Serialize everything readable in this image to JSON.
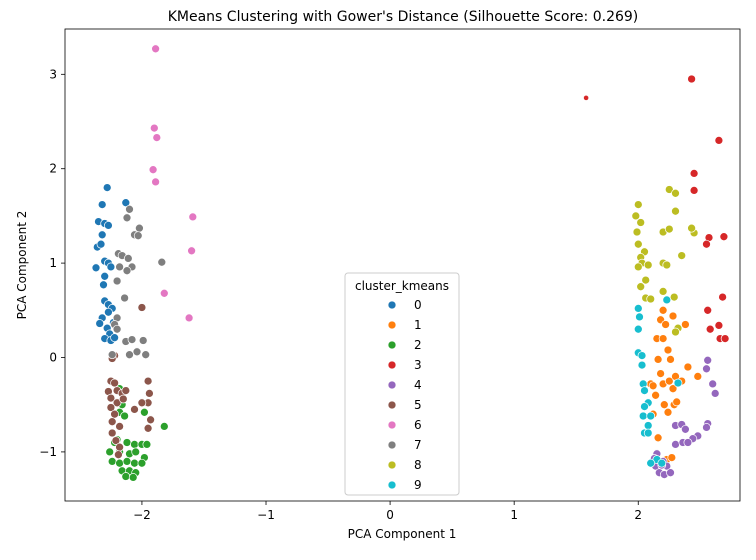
{
  "chart_data": {
    "type": "scatter",
    "title": "KMeans Clustering with Gower's Distance (Silhouette Score: 0.269)",
    "xlabel": "PCA Component 1",
    "ylabel": "PCA Component 2",
    "xlim": [
      -2.62,
      2.82
    ],
    "ylim": [
      -1.52,
      3.48
    ],
    "xticks": [
      -2,
      -1,
      0,
      1,
      2
    ],
    "yticks": [
      -1,
      0,
      1,
      2,
      3
    ],
    "legend": {
      "title": "cluster_kmeans",
      "placement": "lower-center"
    },
    "series": [
      {
        "name": "0",
        "color": "#1f77b4",
        "points": [
          [
            -2.28,
            1.8
          ],
          [
            -2.32,
            1.62
          ],
          [
            -2.35,
            1.44
          ],
          [
            -2.3,
            1.42
          ],
          [
            -2.27,
            1.4
          ],
          [
            -2.32,
            1.3
          ],
          [
            -2.36,
            1.17
          ],
          [
            -2.33,
            1.2
          ],
          [
            -2.3,
            1.02
          ],
          [
            -2.27,
            1.0
          ],
          [
            -2.37,
            0.95
          ],
          [
            -2.25,
            0.96
          ],
          [
            -2.3,
            0.86
          ],
          [
            -2.31,
            0.77
          ],
          [
            -2.3,
            0.6
          ],
          [
            -2.27,
            0.56
          ],
          [
            -2.24,
            0.52
          ],
          [
            -2.27,
            0.48
          ],
          [
            -2.32,
            0.42
          ],
          [
            -2.34,
            0.36
          ],
          [
            -2.28,
            0.31
          ],
          [
            -2.26,
            0.25
          ],
          [
            -2.3,
            0.2
          ],
          [
            -2.25,
            0.18
          ],
          [
            -2.23,
            0.37
          ],
          [
            -2.22,
            0.21
          ],
          [
            -2.13,
            1.64
          ]
        ]
      },
      {
        "name": "1",
        "color": "#ff7f0e",
        "points": [
          [
            2.1,
            -0.28
          ],
          [
            2.12,
            -0.3
          ],
          [
            2.14,
            -0.4
          ],
          [
            2.12,
            -0.6
          ],
          [
            2.16,
            -0.85
          ],
          [
            2.2,
            0.5
          ],
          [
            2.18,
            0.4
          ],
          [
            2.22,
            0.35
          ],
          [
            2.28,
            0.44
          ],
          [
            2.15,
            0.2
          ],
          [
            2.2,
            0.2
          ],
          [
            2.24,
            0.08
          ],
          [
            2.26,
            -0.02
          ],
          [
            2.16,
            -0.02
          ],
          [
            2.18,
            -0.17
          ],
          [
            2.2,
            -0.28
          ],
          [
            2.25,
            -0.25
          ],
          [
            2.28,
            -0.33
          ],
          [
            2.21,
            -0.5
          ],
          [
            2.29,
            -0.5
          ],
          [
            2.24,
            -0.58
          ],
          [
            2.31,
            -0.47
          ],
          [
            2.35,
            -0.25
          ],
          [
            2.38,
            0.35
          ],
          [
            2.48,
            -0.2
          ],
          [
            2.4,
            -0.1
          ],
          [
            2.23,
            -1.08
          ],
          [
            2.27,
            -1.06
          ],
          [
            2.3,
            -0.2
          ]
        ]
      },
      {
        "name": "2",
        "color": "#2ca02c",
        "points": [
          [
            -2.18,
            -0.33
          ],
          [
            -2.16,
            -0.5
          ],
          [
            -2.18,
            -0.58
          ],
          [
            -2.14,
            -0.62
          ],
          [
            -1.98,
            -0.58
          ],
          [
            -1.82,
            -0.73
          ],
          [
            -2.2,
            -0.87
          ],
          [
            -2.12,
            -0.9
          ],
          [
            -2.06,
            -0.92
          ],
          [
            -2.0,
            -0.92
          ],
          [
            -1.96,
            -0.92
          ],
          [
            -2.26,
            -1.0
          ],
          [
            -2.18,
            -1.0
          ],
          [
            -2.1,
            -1.02
          ],
          [
            -2.05,
            -1.0
          ],
          [
            -1.98,
            -1.06
          ],
          [
            -2.24,
            -1.1
          ],
          [
            -2.18,
            -1.12
          ],
          [
            -2.12,
            -1.1
          ],
          [
            -2.06,
            -1.12
          ],
          [
            -2.0,
            -1.12
          ],
          [
            -2.16,
            -1.2
          ],
          [
            -2.1,
            -1.2
          ],
          [
            -2.05,
            -1.22
          ],
          [
            -2.13,
            -1.26
          ],
          [
            -2.07,
            -1.27
          ],
          [
            -2.22,
            -0.9
          ]
        ]
      },
      {
        "name": "3",
        "color": "#d62728",
        "points": [
          [
            1.58,
            2.75
          ],
          [
            2.43,
            2.95
          ],
          [
            2.65,
            2.3
          ],
          [
            2.45,
            1.95
          ],
          [
            2.45,
            1.77
          ],
          [
            2.57,
            1.27
          ],
          [
            2.55,
            1.2
          ],
          [
            2.69,
            1.28
          ],
          [
            2.68,
            0.64
          ],
          [
            2.56,
            0.5
          ],
          [
            2.58,
            0.3
          ],
          [
            2.65,
            0.34
          ],
          [
            2.66,
            0.2
          ],
          [
            2.7,
            0.2
          ]
        ]
      },
      {
        "name": "4",
        "color": "#9467bd",
        "points": [
          [
            2.56,
            -0.03
          ],
          [
            2.55,
            -0.12
          ],
          [
            2.6,
            -0.28
          ],
          [
            2.62,
            -0.38
          ],
          [
            2.56,
            -0.7
          ],
          [
            2.55,
            -0.74
          ],
          [
            2.48,
            -0.83
          ],
          [
            2.44,
            -0.86
          ],
          [
            2.3,
            -0.72
          ],
          [
            2.35,
            -0.71
          ],
          [
            2.38,
            -0.76
          ],
          [
            2.3,
            -0.92
          ],
          [
            2.36,
            -0.9
          ],
          [
            2.4,
            -0.9
          ],
          [
            2.15,
            -1.02
          ],
          [
            2.2,
            -1.1
          ],
          [
            2.23,
            -1.15
          ],
          [
            2.14,
            -1.15
          ],
          [
            2.17,
            -1.22
          ],
          [
            2.21,
            -1.24
          ],
          [
            2.26,
            -1.22
          ],
          [
            2.19,
            -1.14
          ],
          [
            2.13,
            -1.07
          ]
        ]
      },
      {
        "name": "5",
        "color": "#8c564b",
        "points": [
          [
            -2.0,
            0.53
          ],
          [
            -2.22,
            0.02
          ],
          [
            -2.24,
            -0.01
          ],
          [
            -2.25,
            -0.25
          ],
          [
            -2.22,
            -0.27
          ],
          [
            -2.27,
            -0.36
          ],
          [
            -2.2,
            -0.35
          ],
          [
            -2.16,
            -0.38
          ],
          [
            -2.13,
            -0.35
          ],
          [
            -2.25,
            -0.43
          ],
          [
            -2.2,
            -0.48
          ],
          [
            -2.25,
            -0.53
          ],
          [
            -2.22,
            -0.6
          ],
          [
            -2.24,
            -0.68
          ],
          [
            -2.18,
            -0.73
          ],
          [
            -2.24,
            -0.8
          ],
          [
            -2.21,
            -0.88
          ],
          [
            -2.18,
            -0.95
          ],
          [
            -2.19,
            -1.03
          ],
          [
            -1.95,
            -0.25
          ],
          [
            -1.94,
            -0.38
          ],
          [
            -1.95,
            -0.48
          ],
          [
            -1.93,
            -0.66
          ],
          [
            -1.95,
            -0.75
          ],
          [
            -2.0,
            -0.48
          ],
          [
            -2.06,
            -0.55
          ],
          [
            -2.15,
            -0.44
          ]
        ]
      },
      {
        "name": "6",
        "color": "#e377c2",
        "points": [
          [
            -1.89,
            3.27
          ],
          [
            -1.9,
            2.43
          ],
          [
            -1.88,
            2.33
          ],
          [
            -1.91,
            1.99
          ],
          [
            -1.89,
            1.86
          ],
          [
            -1.59,
            1.49
          ],
          [
            -1.6,
            1.13
          ],
          [
            -1.82,
            0.68
          ],
          [
            -1.62,
            0.42
          ]
        ]
      },
      {
        "name": "7",
        "color": "#7f7f7f",
        "points": [
          [
            -2.1,
            1.57
          ],
          [
            -2.12,
            1.48
          ],
          [
            -2.02,
            1.37
          ],
          [
            -2.06,
            1.3
          ],
          [
            -2.03,
            1.29
          ],
          [
            -2.19,
            1.1
          ],
          [
            -2.16,
            1.08
          ],
          [
            -2.11,
            1.05
          ],
          [
            -2.18,
            0.96
          ],
          [
            -2.08,
            0.96
          ],
          [
            -2.12,
            0.92
          ],
          [
            -2.2,
            0.81
          ],
          [
            -2.14,
            0.63
          ],
          [
            -2.2,
            0.42
          ],
          [
            -2.22,
            0.35
          ],
          [
            -2.2,
            0.3
          ],
          [
            -2.13,
            0.17
          ],
          [
            -2.08,
            0.19
          ],
          [
            -2.04,
            0.06
          ],
          [
            -2.1,
            0.03
          ],
          [
            -2.24,
            0.03
          ],
          [
            -1.84,
            1.01
          ],
          [
            -1.99,
            0.18
          ],
          [
            -1.97,
            0.03
          ]
        ]
      },
      {
        "name": "8",
        "color": "#bcbd22",
        "points": [
          [
            2.0,
            1.62
          ],
          [
            1.98,
            1.5
          ],
          [
            2.02,
            1.43
          ],
          [
            1.99,
            1.33
          ],
          [
            2.0,
            1.2
          ],
          [
            2.05,
            1.12
          ],
          [
            2.02,
            1.06
          ],
          [
            2.03,
            1.0
          ],
          [
            2.0,
            0.96
          ],
          [
            2.08,
            0.98
          ],
          [
            2.06,
            0.82
          ],
          [
            2.02,
            0.75
          ],
          [
            2.06,
            0.63
          ],
          [
            2.1,
            0.62
          ],
          [
            2.2,
            1.0
          ],
          [
            2.23,
            0.98
          ],
          [
            2.2,
            1.33
          ],
          [
            2.25,
            1.36
          ],
          [
            2.25,
            1.78
          ],
          [
            2.3,
            1.74
          ],
          [
            2.3,
            1.55
          ],
          [
            2.35,
            1.08
          ],
          [
            2.45,
            1.32
          ],
          [
            2.43,
            1.37
          ],
          [
            2.2,
            0.7
          ],
          [
            2.29,
            0.64
          ],
          [
            2.32,
            0.31
          ],
          [
            2.3,
            0.27
          ]
        ]
      },
      {
        "name": "9",
        "color": "#17becf",
        "points": [
          [
            2.0,
            0.52
          ],
          [
            2.01,
            0.43
          ],
          [
            2.0,
            0.3
          ],
          [
            2.0,
            0.05
          ],
          [
            2.03,
            0.02
          ],
          [
            2.03,
            -0.08
          ],
          [
            2.04,
            -0.28
          ],
          [
            2.05,
            -0.35
          ],
          [
            2.08,
            -0.48
          ],
          [
            2.05,
            -0.52
          ],
          [
            2.04,
            -0.62
          ],
          [
            2.08,
            -0.72
          ],
          [
            2.05,
            -0.8
          ],
          [
            2.08,
            -0.8
          ],
          [
            2.23,
            0.61
          ],
          [
            2.32,
            -0.27
          ],
          [
            2.1,
            -0.62
          ],
          [
            2.15,
            -1.08
          ],
          [
            2.19,
            -1.12
          ],
          [
            2.1,
            -1.12
          ]
        ]
      }
    ]
  }
}
